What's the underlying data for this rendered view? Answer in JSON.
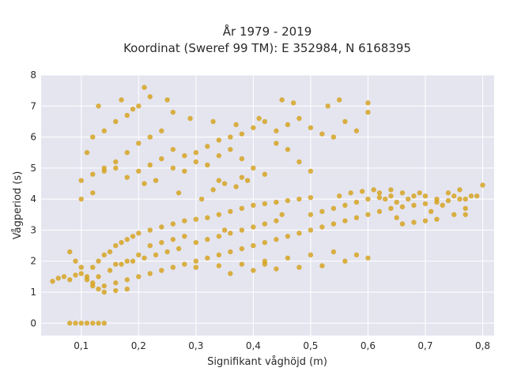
{
  "chart_data": {
    "type": "scatter",
    "title_line1": "År 1979 - 2019",
    "title_line2": "Koordinat (Sweref 99 TM): E 352984, N 6168395",
    "xlabel": "Signifikant våghöjd (m)",
    "ylabel": "Vågperiod (s)",
    "xlim": [
      0.03,
      0.82
    ],
    "ylim": [
      -0.4,
      8.0
    ],
    "x_ticks": [
      0.1,
      0.2,
      0.3,
      0.4,
      0.5,
      0.6,
      0.7,
      0.8
    ],
    "x_tick_labels": [
      "0,1",
      "0,2",
      "0,3",
      "0,4",
      "0,5",
      "0,6",
      "0,7",
      "0,8"
    ],
    "y_ticks": [
      0,
      1,
      2,
      3,
      4,
      5,
      6,
      7,
      8
    ],
    "y_tick_labels": [
      "0",
      "1",
      "2",
      "3",
      "4",
      "5",
      "6",
      "7",
      "8"
    ],
    "grid": true,
    "marker_color": "#D4A017",
    "background_color": "#E5E5F0",
    "points": [
      [
        0.05,
        1.35
      ],
      [
        0.06,
        1.45
      ],
      [
        0.07,
        1.5
      ],
      [
        0.08,
        1.4
      ],
      [
        0.09,
        1.55
      ],
      [
        0.1,
        1.6
      ],
      [
        0.11,
        1.4
      ],
      [
        0.12,
        1.3
      ],
      [
        0.08,
        0.0
      ],
      [
        0.09,
        0.0
      ],
      [
        0.1,
        0.0
      ],
      [
        0.11,
        0.0
      ],
      [
        0.12,
        0.0
      ],
      [
        0.13,
        0.0
      ],
      [
        0.14,
        0.0
      ],
      [
        0.12,
        1.8
      ],
      [
        0.13,
        2.0
      ],
      [
        0.14,
        2.2
      ],
      [
        0.15,
        2.3
      ],
      [
        0.16,
        2.5
      ],
      [
        0.17,
        2.6
      ],
      [
        0.18,
        2.7
      ],
      [
        0.19,
        2.8
      ],
      [
        0.13,
        1.5
      ],
      [
        0.15,
        1.7
      ],
      [
        0.17,
        1.9
      ],
      [
        0.19,
        2.0
      ],
      [
        0.21,
        2.1
      ],
      [
        0.23,
        2.2
      ],
      [
        0.25,
        2.3
      ],
      [
        0.27,
        2.4
      ],
      [
        0.2,
        2.9
      ],
      [
        0.22,
        3.0
      ],
      [
        0.24,
        3.1
      ],
      [
        0.26,
        3.2
      ],
      [
        0.28,
        3.3
      ],
      [
        0.3,
        3.35
      ],
      [
        0.32,
        3.4
      ],
      [
        0.34,
        3.5
      ],
      [
        0.14,
        1.2
      ],
      [
        0.16,
        1.3
      ],
      [
        0.18,
        1.4
      ],
      [
        0.2,
        1.5
      ],
      [
        0.22,
        1.6
      ],
      [
        0.24,
        1.7
      ],
      [
        0.26,
        1.8
      ],
      [
        0.28,
        1.9
      ],
      [
        0.3,
        2.0
      ],
      [
        0.32,
        2.1
      ],
      [
        0.34,
        2.2
      ],
      [
        0.36,
        2.3
      ],
      [
        0.38,
        2.4
      ],
      [
        0.4,
        2.5
      ],
      [
        0.42,
        2.6
      ],
      [
        0.44,
        2.7
      ],
      [
        0.3,
        2.6
      ],
      [
        0.32,
        2.7
      ],
      [
        0.34,
        2.8
      ],
      [
        0.36,
        2.9
      ],
      [
        0.38,
        3.0
      ],
      [
        0.4,
        3.1
      ],
      [
        0.42,
        3.2
      ],
      [
        0.44,
        3.3
      ],
      [
        0.36,
        3.6
      ],
      [
        0.38,
        3.7
      ],
      [
        0.4,
        3.8
      ],
      [
        0.42,
        3.85
      ],
      [
        0.44,
        3.9
      ],
      [
        0.46,
        3.95
      ],
      [
        0.48,
        4.0
      ],
      [
        0.5,
        4.05
      ],
      [
        0.46,
        2.8
      ],
      [
        0.48,
        2.9
      ],
      [
        0.5,
        3.0
      ],
      [
        0.52,
        3.1
      ],
      [
        0.54,
        3.2
      ],
      [
        0.56,
        3.3
      ],
      [
        0.58,
        3.4
      ],
      [
        0.6,
        3.5
      ],
      [
        0.5,
        3.5
      ],
      [
        0.52,
        3.6
      ],
      [
        0.54,
        3.7
      ],
      [
        0.56,
        3.8
      ],
      [
        0.58,
        3.9
      ],
      [
        0.6,
        4.0
      ],
      [
        0.62,
        4.05
      ],
      [
        0.64,
        4.1
      ],
      [
        0.62,
        3.6
      ],
      [
        0.64,
        3.7
      ],
      [
        0.66,
        3.75
      ],
      [
        0.68,
        3.8
      ],
      [
        0.7,
        3.85
      ],
      [
        0.72,
        3.9
      ],
      [
        0.74,
        3.95
      ],
      [
        0.76,
        4.0
      ],
      [
        0.66,
        3.2
      ],
      [
        0.68,
        3.25
      ],
      [
        0.7,
        3.3
      ],
      [
        0.72,
        3.35
      ],
      [
        0.75,
        3.5
      ],
      [
        0.77,
        3.7
      ],
      [
        0.78,
        4.1
      ],
      [
        0.8,
        4.45
      ],
      [
        0.7,
        4.1
      ],
      [
        0.72,
        4.0
      ],
      [
        0.74,
        4.2
      ],
      [
        0.76,
        4.3
      ],
      [
        0.62,
        4.2
      ],
      [
        0.64,
        4.3
      ],
      [
        0.66,
        4.2
      ],
      [
        0.68,
        4.1
      ],
      [
        0.3,
        1.8
      ],
      [
        0.34,
        1.85
      ],
      [
        0.38,
        1.9
      ],
      [
        0.42,
        2.0
      ],
      [
        0.46,
        2.1
      ],
      [
        0.5,
        2.2
      ],
      [
        0.54,
        2.3
      ],
      [
        0.58,
        2.2
      ],
      [
        0.36,
        1.6
      ],
      [
        0.4,
        1.7
      ],
      [
        0.44,
        1.75
      ],
      [
        0.48,
        1.8
      ],
      [
        0.52,
        1.85
      ],
      [
        0.56,
        2.0
      ],
      [
        0.6,
        2.1
      ],
      [
        0.42,
        1.9
      ],
      [
        0.14,
        5.0
      ],
      [
        0.16,
        5.2
      ],
      [
        0.18,
        5.5
      ],
      [
        0.2,
        5.8
      ],
      [
        0.22,
        6.0
      ],
      [
        0.24,
        6.2
      ],
      [
        0.26,
        5.6
      ],
      [
        0.28,
        5.4
      ],
      [
        0.3,
        5.5
      ],
      [
        0.32,
        5.7
      ],
      [
        0.34,
        5.9
      ],
      [
        0.36,
        6.0
      ],
      [
        0.38,
        6.1
      ],
      [
        0.4,
        6.3
      ],
      [
        0.42,
        6.5
      ],
      [
        0.44,
        6.2
      ],
      [
        0.46,
        6.4
      ],
      [
        0.48,
        6.6
      ],
      [
        0.5,
        6.3
      ],
      [
        0.52,
        6.1
      ],
      [
        0.54,
        6.0
      ],
      [
        0.56,
        6.5
      ],
      [
        0.58,
        6.2
      ],
      [
        0.6,
        6.8
      ],
      [
        0.1,
        4.6
      ],
      [
        0.12,
        4.8
      ],
      [
        0.14,
        4.9
      ],
      [
        0.16,
        5.0
      ],
      [
        0.18,
        4.7
      ],
      [
        0.2,
        4.9
      ],
      [
        0.22,
        5.1
      ],
      [
        0.24,
        5.3
      ],
      [
        0.26,
        5.0
      ],
      [
        0.28,
        4.9
      ],
      [
        0.3,
        5.2
      ],
      [
        0.32,
        5.1
      ],
      [
        0.34,
        5.4
      ],
      [
        0.36,
        5.6
      ],
      [
        0.38,
        5.3
      ],
      [
        0.4,
        5.0
      ],
      [
        0.12,
        6.0
      ],
      [
        0.14,
        6.2
      ],
      [
        0.16,
        6.5
      ],
      [
        0.18,
        6.7
      ],
      [
        0.2,
        7.0
      ],
      [
        0.22,
        7.3
      ],
      [
        0.25,
        7.2
      ],
      [
        0.13,
        7.0
      ],
      [
        0.21,
        7.6
      ],
      [
        0.26,
        6.8
      ],
      [
        0.29,
        6.6
      ],
      [
        0.33,
        6.5
      ],
      [
        0.37,
        6.4
      ],
      [
        0.41,
        6.6
      ],
      [
        0.45,
        7.2
      ],
      [
        0.47,
        7.1
      ],
      [
        0.53,
        7.0
      ],
      [
        0.55,
        7.2
      ],
      [
        0.6,
        7.1
      ],
      [
        0.17,
        7.2
      ],
      [
        0.19,
        6.9
      ],
      [
        0.11,
        5.5
      ],
      [
        0.1,
        4.0
      ],
      [
        0.44,
        5.8
      ],
      [
        0.5,
        4.9
      ],
      [
        0.46,
        5.6
      ],
      [
        0.48,
        5.2
      ],
      [
        0.42,
        4.8
      ],
      [
        0.38,
        4.7
      ],
      [
        0.34,
        4.6
      ],
      [
        0.12,
        4.2
      ],
      [
        0.08,
        2.3
      ],
      [
        0.09,
        2.0
      ],
      [
        0.1,
        1.8
      ],
      [
        0.11,
        1.5
      ],
      [
        0.12,
        1.2
      ],
      [
        0.13,
        1.1
      ],
      [
        0.14,
        1.0
      ],
      [
        0.16,
        1.05
      ],
      [
        0.18,
        1.1
      ],
      [
        0.22,
        2.5
      ],
      [
        0.24,
        2.6
      ],
      [
        0.26,
        2.7
      ],
      [
        0.28,
        2.8
      ],
      [
        0.2,
        2.2
      ],
      [
        0.18,
        2.0
      ],
      [
        0.16,
        1.9
      ],
      [
        0.35,
        3.0
      ],
      [
        0.45,
        3.5
      ],
      [
        0.55,
        4.1
      ],
      [
        0.57,
        4.2
      ],
      [
        0.59,
        4.25
      ],
      [
        0.61,
        4.3
      ],
      [
        0.63,
        4.0
      ],
      [
        0.65,
        3.9
      ],
      [
        0.67,
        4.0
      ],
      [
        0.69,
        4.2
      ],
      [
        0.71,
        3.6
      ],
      [
        0.73,
        3.8
      ],
      [
        0.75,
        4.1
      ],
      [
        0.77,
        4.0
      ],
      [
        0.77,
        3.5
      ],
      [
        0.79,
        4.1
      ],
      [
        0.65,
        3.4
      ],
      [
        0.21,
        4.5
      ],
      [
        0.23,
        4.6
      ],
      [
        0.27,
        4.2
      ],
      [
        0.31,
        4.0
      ],
      [
        0.33,
        4.3
      ],
      [
        0.35,
        4.5
      ],
      [
        0.37,
        4.4
      ],
      [
        0.39,
        4.6
      ]
    ]
  }
}
